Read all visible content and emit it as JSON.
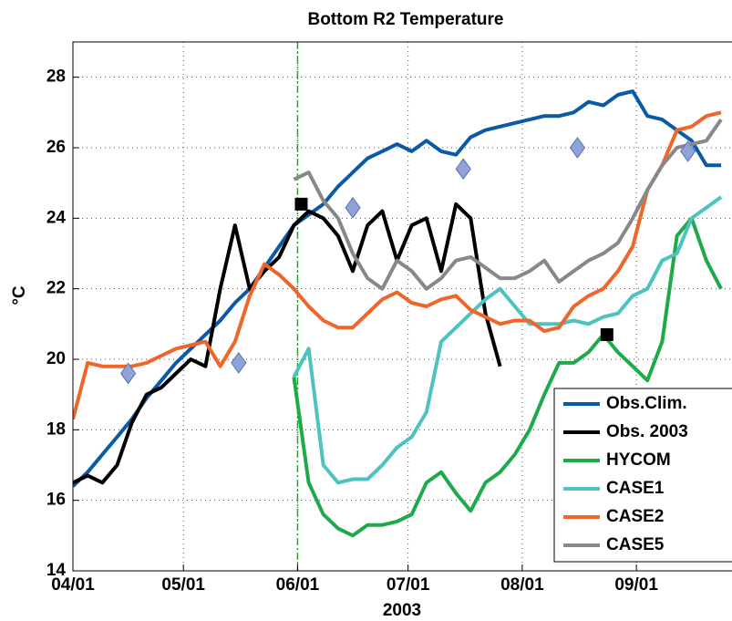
{
  "chart_data": {
    "type": "line",
    "title": "Bottom R2 Temperature",
    "xlabel": "2003",
    "ylabel": "°C",
    "x": [
      0,
      4,
      8,
      12,
      16,
      20,
      24,
      28,
      32,
      36,
      40,
      44,
      48,
      52,
      56,
      60,
      64,
      68,
      72,
      76,
      80,
      84,
      88,
      92,
      96,
      100,
      104,
      108,
      112,
      116,
      120,
      124,
      128,
      132,
      136,
      140,
      144,
      148,
      152,
      156,
      160,
      164,
      168,
      172,
      176
    ],
    "xlim": [
      0,
      179
    ],
    "ylim": [
      14,
      29
    ],
    "xticks": [
      {
        "value": 0,
        "label": "04/01"
      },
      {
        "value": 30,
        "label": "05/01"
      },
      {
        "value": 61,
        "label": "06/01"
      },
      {
        "value": 91,
        "label": "07/01"
      },
      {
        "value": 122,
        "label": "08/01"
      },
      {
        "value": 153,
        "label": "09/01"
      }
    ],
    "yticks": [
      14,
      16,
      18,
      20,
      22,
      24,
      26,
      28
    ],
    "grid": true,
    "legend": "lower right",
    "vline": 61,
    "vline_color": "#2ca02c",
    "series": [
      {
        "name": "Obs.Clim.",
        "color": "#0a5aa6",
        "values": [
          16.4,
          16.8,
          17.3,
          17.8,
          18.3,
          18.9,
          19.4,
          19.9,
          20.3,
          20.7,
          21.1,
          21.6,
          22.0,
          22.6,
          23.2,
          23.8,
          24.1,
          24.4,
          24.9,
          25.3,
          25.7,
          25.9,
          26.1,
          25.9,
          26.2,
          25.9,
          25.8,
          26.3,
          26.5,
          26.6,
          26.7,
          26.8,
          26.9,
          26.9,
          27.0,
          27.3,
          27.2,
          27.5,
          27.6,
          26.9,
          26.8,
          26.5,
          26.2,
          25.5,
          25.5
        ]
      },
      {
        "name": "Obs. 2003",
        "color": "#000000",
        "values": [
          16.5,
          16.7,
          16.5,
          17.0,
          18.2,
          19.0,
          19.2,
          19.6,
          20.0,
          19.8,
          22.0,
          23.8,
          22.0,
          22.5,
          22.9,
          23.8,
          24.2,
          24.0,
          23.5,
          22.5,
          23.8,
          24.2,
          22.8,
          23.8,
          24.0,
          22.5,
          24.4,
          24.0,
          21.3,
          19.8,
          null,
          null,
          null,
          null,
          null,
          null,
          null,
          null,
          null,
          null,
          null,
          null,
          null,
          null,
          null
        ]
      },
      {
        "name": "HYCOM",
        "color": "#1faa4a",
        "values": [
          null,
          null,
          null,
          null,
          null,
          null,
          null,
          null,
          null,
          null,
          null,
          null,
          null,
          null,
          null,
          19.5,
          16.5,
          15.6,
          15.2,
          15.0,
          15.3,
          15.3,
          15.4,
          15.6,
          16.5,
          16.8,
          16.2,
          15.7,
          16.5,
          16.8,
          17.3,
          18.0,
          19.0,
          19.9,
          19.9,
          20.2,
          20.7,
          20.2,
          19.8,
          19.4,
          20.5,
          23.5,
          24.0,
          22.8,
          22.0
        ]
      },
      {
        "name": "CASE1",
        "color": "#4cc3c1",
        "values": [
          null,
          null,
          null,
          null,
          null,
          null,
          null,
          null,
          null,
          null,
          null,
          null,
          null,
          null,
          null,
          19.5,
          20.3,
          17.0,
          16.5,
          16.6,
          16.6,
          17.0,
          17.5,
          17.8,
          18.5,
          20.5,
          20.9,
          21.3,
          21.7,
          22.0,
          21.5,
          21.0,
          21.0,
          21.0,
          21.1,
          21.0,
          21.2,
          21.3,
          21.8,
          22.0,
          22.8,
          23.0,
          24.0,
          24.3,
          24.6
        ]
      },
      {
        "name": "CASE2",
        "color": "#f0662a",
        "values": [
          18.3,
          19.9,
          19.8,
          19.8,
          19.8,
          19.9,
          20.1,
          20.3,
          20.4,
          20.5,
          19.8,
          20.5,
          21.8,
          22.7,
          22.4,
          22.0,
          21.5,
          21.1,
          20.9,
          20.9,
          21.3,
          21.7,
          21.9,
          21.6,
          21.5,
          21.7,
          21.8,
          21.4,
          21.2,
          21.0,
          21.1,
          21.1,
          20.8,
          20.9,
          21.5,
          21.8,
          22.0,
          22.5,
          23.2,
          24.8,
          25.5,
          26.5,
          26.6,
          26.9,
          27.0
        ]
      },
      {
        "name": "CASE5",
        "color": "#888888",
        "values": [
          null,
          null,
          null,
          null,
          null,
          null,
          null,
          null,
          null,
          null,
          null,
          null,
          null,
          null,
          null,
          25.1,
          25.3,
          24.5,
          24.0,
          23.0,
          22.3,
          22.0,
          22.8,
          22.5,
          22.0,
          22.3,
          22.8,
          22.9,
          22.6,
          22.3,
          22.3,
          22.5,
          22.8,
          22.2,
          22.5,
          22.8,
          23.0,
          23.3,
          24.0,
          24.8,
          25.5,
          26.0,
          26.1,
          26.2,
          26.8
        ]
      }
    ],
    "diamond_points": {
      "color": "#8ea3d9",
      "x": [
        15,
        45,
        76,
        106,
        137,
        167
      ],
      "values": [
        19.6,
        19.9,
        24.3,
        25.4,
        26.0,
        25.9
      ]
    },
    "square_points": {
      "color": "#000000",
      "x": [
        62,
        145
      ],
      "values": [
        24.4,
        20.7
      ]
    }
  }
}
